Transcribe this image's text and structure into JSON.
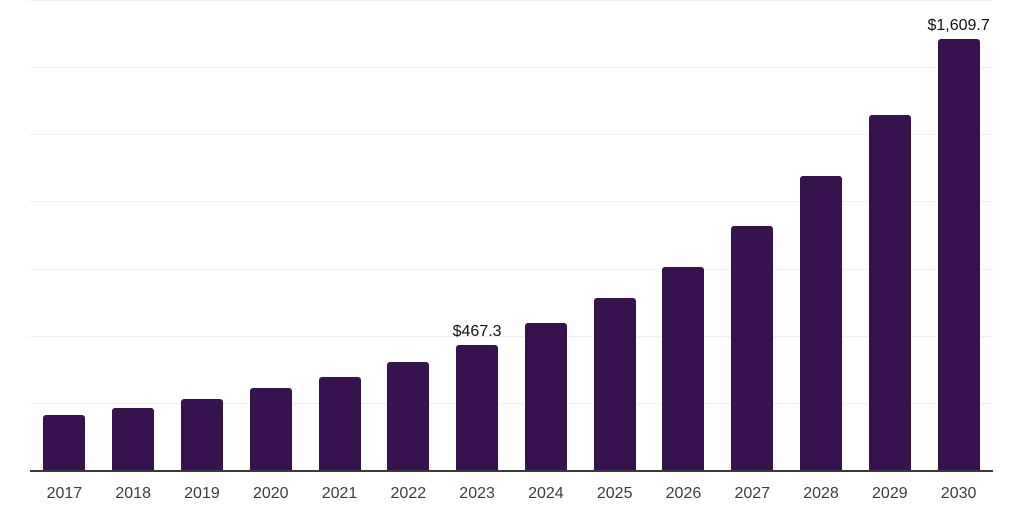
{
  "chart_data": {
    "type": "bar",
    "title": "",
    "xlabel": "",
    "ylabel": "",
    "categories": [
      "2017",
      "2018",
      "2019",
      "2020",
      "2021",
      "2022",
      "2023",
      "2024",
      "2025",
      "2026",
      "2027",
      "2028",
      "2029",
      "2030"
    ],
    "values": [
      210,
      235,
      268,
      309,
      350,
      406,
      467.3,
      550,
      643,
      760,
      913,
      1099,
      1326,
      1609.7
    ],
    "value_labels": [
      "",
      "",
      "",
      "",
      "",
      "",
      "$467.3",
      "",
      "",
      "",
      "",
      "",
      "",
      "$1,609.7"
    ],
    "ylim": [
      0,
      1750
    ],
    "gridline_step": 250,
    "grid": true,
    "legend": "none",
    "colors": {
      "bar": "#36124e",
      "axis_line": "#3a3a3a",
      "gridline": "#f0f0f0",
      "tick_label": "#3d3d3d",
      "data_label": "#111111",
      "background": "#ffffff"
    }
  }
}
